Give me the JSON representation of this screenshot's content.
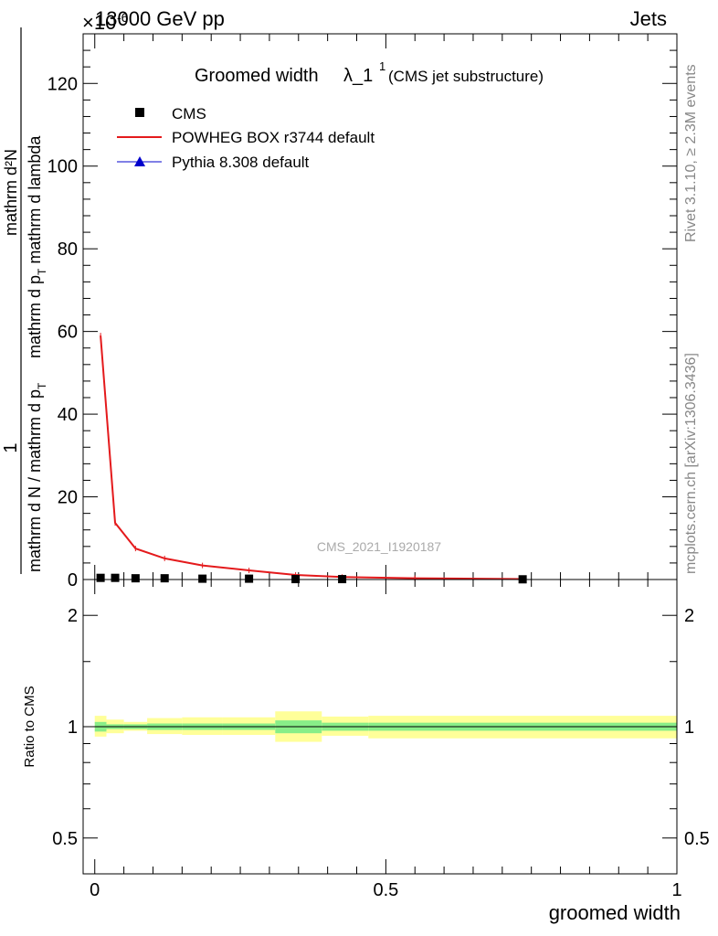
{
  "header": {
    "energy_label": "13000 GeV pp",
    "exponent_label": "×10",
    "exponent_power": "-6",
    "process_label": "Jets"
  },
  "side_labels": {
    "rivet": "Rivet 3.1.10, ≥ 2.3M events",
    "mcplots": "mcplots.cern.ch [arXiv:1306.3436]"
  },
  "chart_data": [
    {
      "type": "line",
      "title": "Groomed width",
      "title_symbol": "λ_1",
      "title_superscript": "1",
      "subtitle": "(CMS jet substructure)",
      "watermark": "CMS_2021_I1920187",
      "ylabel_top": "1",
      "ylabel_numerator": "mathrm d²N",
      "ylabel_denominator_left": "mathrm d N / mathrm d p",
      "ylabel_denominator_sub": "T",
      "ylabel_main": "mathrm d p",
      "ylabel_main_sub": "T",
      "ylabel_main_tail": " mathrm d lambda",
      "xlim": [
        -0.02,
        1.0
      ],
      "ylim": [
        0,
        132
      ],
      "yticks": [
        0,
        20,
        40,
        60,
        80,
        100,
        120
      ],
      "ytick_labels": [
        "0",
        "20",
        "40",
        "60",
        "80",
        "100",
        "120"
      ],
      "legend_position": "top-left",
      "legend": [
        {
          "name": "CMS",
          "marker": "square",
          "color": "#000000"
        },
        {
          "name": "POWHEG BOX r3744 default",
          "marker": "line",
          "color": "#e41a1c"
        },
        {
          "name": "Pythia 8.308 default",
          "marker": "triangle",
          "color": "#0000cc"
        }
      ],
      "series": [
        {
          "name": "CMS",
          "x": [
            0.01,
            0.035,
            0.07,
            0.12,
            0.185,
            0.265,
            0.345,
            0.425,
            0.735
          ],
          "y": [
            0.4,
            0.4,
            0.3,
            0.3,
            0.2,
            0.2,
            0.1,
            0.1,
            0.05
          ]
        },
        {
          "name": "POWHEG BOX r3744 default",
          "x": [
            0.01,
            0.035,
            0.07,
            0.12,
            0.185,
            0.265,
            0.345,
            0.425,
            0.55,
            0.735
          ],
          "y": [
            59,
            13.7,
            7.5,
            5.1,
            3.4,
            2.2,
            1.1,
            0.6,
            0.3,
            0.1
          ]
        }
      ]
    },
    {
      "type": "line",
      "ylabel": "Ratio to CMS",
      "xlabel": "groomed width",
      "xlim": [
        -0.02,
        1.0
      ],
      "ylim": [
        0.4,
        2.5
      ],
      "log_y": true,
      "yticks": [
        0.5,
        1,
        2
      ],
      "ytick_labels": [
        "0.5",
        "1",
        "2"
      ],
      "xticks": [
        0,
        0.5,
        1
      ],
      "xtick_labels": [
        "0",
        "0.5",
        "1"
      ],
      "bands": {
        "bin_edges": [
          0.0,
          0.02,
          0.05,
          0.09,
          0.15,
          0.22,
          0.31,
          0.39,
          0.47,
          1.0
        ],
        "stat_low": [
          0.97,
          0.985,
          0.985,
          0.98,
          0.98,
          0.98,
          0.96,
          0.975,
          0.975
        ],
        "stat_high": [
          1.03,
          1.015,
          1.015,
          1.02,
          1.02,
          1.02,
          1.04,
          1.025,
          1.025
        ],
        "total_low": [
          0.94,
          0.96,
          0.975,
          0.955,
          0.95,
          0.95,
          0.91,
          0.945,
          0.93
        ],
        "total_high": [
          1.07,
          1.045,
          1.03,
          1.055,
          1.06,
          1.06,
          1.1,
          1.065,
          1.07
        ],
        "stat_color": "#88ee88",
        "total_color": "#ffff99"
      },
      "reference_value": 1.0
    }
  ]
}
